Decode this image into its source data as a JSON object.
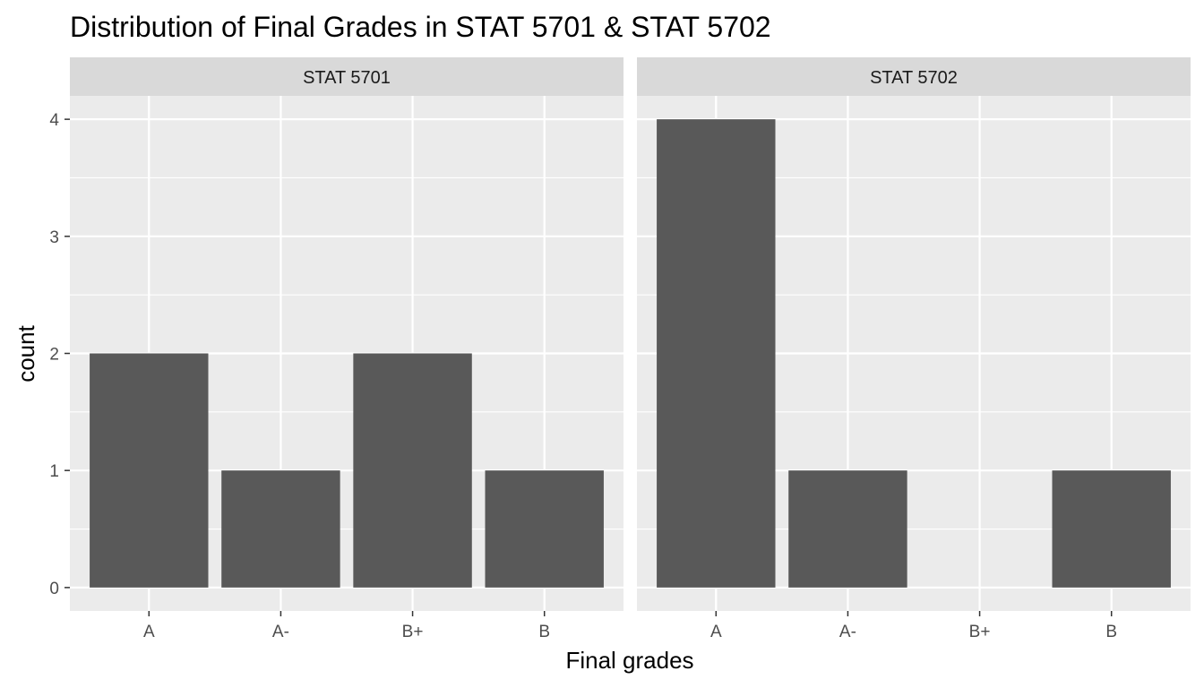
{
  "chart_data": {
    "type": "bar",
    "title": "Distribution of Final Grades in STAT 5701 & STAT 5702",
    "xlabel": "Final grades",
    "ylabel": "count",
    "categories": [
      "A",
      "A-",
      "B+",
      "B"
    ],
    "yticks": [
      0,
      1,
      2,
      3,
      4
    ],
    "ylim": [
      -0.2,
      4.2
    ],
    "grid": true,
    "panels": [
      {
        "label": "STAT 5701",
        "values": [
          2,
          1,
          2,
          1
        ]
      },
      {
        "label": "STAT 5702",
        "values": [
          4,
          1,
          0,
          1
        ]
      }
    ],
    "colors": {
      "bar": "#595959",
      "panel_background": "#ebebeb",
      "strip_background": "#d9d9d9",
      "grid": "#ffffff"
    }
  }
}
